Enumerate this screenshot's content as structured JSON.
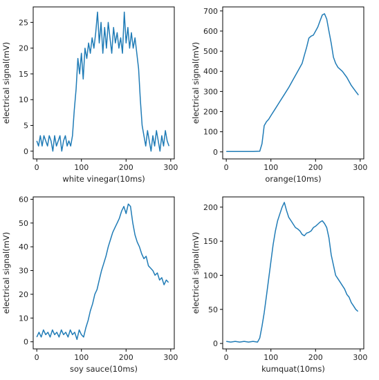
{
  "colors": {
    "line": "#1f7bb6",
    "axis": "#000000",
    "text": "#222222"
  },
  "chart_data": [
    {
      "type": "line",
      "xlabel": "white vinegar(10ms)",
      "ylabel": "electrical signal(mV)",
      "xlim": [
        -8,
        308
      ],
      "ylim": [
        -1.5,
        28
      ],
      "xticks": [
        0,
        100,
        200,
        300
      ],
      "yticks": [
        0,
        5,
        10,
        15,
        20,
        25
      ],
      "grid": false,
      "points": [
        [
          0,
          2
        ],
        [
          4,
          1
        ],
        [
          8,
          3
        ],
        [
          12,
          1
        ],
        [
          16,
          3
        ],
        [
          20,
          2
        ],
        [
          24,
          1
        ],
        [
          28,
          3
        ],
        [
          32,
          2
        ],
        [
          36,
          0
        ],
        [
          40,
          3
        ],
        [
          44,
          1
        ],
        [
          48,
          2
        ],
        [
          52,
          3
        ],
        [
          56,
          0
        ],
        [
          60,
          2
        ],
        [
          64,
          3
        ],
        [
          68,
          1
        ],
        [
          72,
          2
        ],
        [
          76,
          1
        ],
        [
          80,
          3
        ],
        [
          84,
          8
        ],
        [
          88,
          12
        ],
        [
          92,
          18
        ],
        [
          96,
          15
        ],
        [
          100,
          19
        ],
        [
          104,
          14
        ],
        [
          108,
          20
        ],
        [
          112,
          18
        ],
        [
          116,
          21
        ],
        [
          120,
          19
        ],
        [
          124,
          22
        ],
        [
          128,
          20
        ],
        [
          132,
          23
        ],
        [
          136,
          27
        ],
        [
          140,
          21
        ],
        [
          144,
          25
        ],
        [
          148,
          19
        ],
        [
          152,
          24
        ],
        [
          156,
          20
        ],
        [
          160,
          25
        ],
        [
          164,
          22
        ],
        [
          168,
          19
        ],
        [
          172,
          24
        ],
        [
          176,
          21
        ],
        [
          180,
          23
        ],
        [
          184,
          20
        ],
        [
          188,
          22
        ],
        [
          192,
          19
        ],
        [
          196,
          27
        ],
        [
          200,
          21
        ],
        [
          204,
          24
        ],
        [
          208,
          20
        ],
        [
          212,
          23
        ],
        [
          216,
          20
        ],
        [
          220,
          22
        ],
        [
          224,
          19
        ],
        [
          228,
          16
        ],
        [
          232,
          10
        ],
        [
          236,
          5
        ],
        [
          240,
          3
        ],
        [
          244,
          1
        ],
        [
          248,
          4
        ],
        [
          252,
          2
        ],
        [
          256,
          0
        ],
        [
          260,
          3
        ],
        [
          264,
          1
        ],
        [
          268,
          4
        ],
        [
          272,
          2
        ],
        [
          276,
          0
        ],
        [
          280,
          3
        ],
        [
          284,
          1
        ],
        [
          288,
          4
        ],
        [
          292,
          2
        ],
        [
          296,
          1
        ]
      ]
    },
    {
      "type": "line",
      "xlabel": "orange(10ms)",
      "ylabel": "electrical signal(mV)",
      "xlim": [
        -8,
        308
      ],
      "ylim": [
        -35,
        720
      ],
      "xticks": [
        0,
        100,
        200,
        300
      ],
      "yticks": [
        0,
        100,
        200,
        300,
        400,
        500,
        600,
        700
      ],
      "grid": false,
      "points": [
        [
          0,
          2
        ],
        [
          20,
          2
        ],
        [
          40,
          2
        ],
        [
          60,
          2
        ],
        [
          75,
          3
        ],
        [
          80,
          40
        ],
        [
          85,
          130
        ],
        [
          90,
          150
        ],
        [
          95,
          162
        ],
        [
          100,
          180
        ],
        [
          110,
          215
        ],
        [
          120,
          250
        ],
        [
          130,
          285
        ],
        [
          140,
          320
        ],
        [
          150,
          360
        ],
        [
          160,
          400
        ],
        [
          170,
          440
        ],
        [
          175,
          480
        ],
        [
          180,
          520
        ],
        [
          185,
          565
        ],
        [
          190,
          575
        ],
        [
          195,
          580
        ],
        [
          200,
          600
        ],
        [
          205,
          620
        ],
        [
          210,
          650
        ],
        [
          215,
          680
        ],
        [
          220,
          686
        ],
        [
          225,
          660
        ],
        [
          230,
          600
        ],
        [
          235,
          540
        ],
        [
          240,
          470
        ],
        [
          245,
          440
        ],
        [
          250,
          420
        ],
        [
          260,
          400
        ],
        [
          270,
          370
        ],
        [
          280,
          330
        ],
        [
          290,
          300
        ],
        [
          296,
          282
        ]
      ]
    },
    {
      "type": "line",
      "xlabel": "soy sauce(10ms)",
      "ylabel": "electrical signal(mV)",
      "xlim": [
        -8,
        308
      ],
      "ylim": [
        -3,
        61
      ],
      "xticks": [
        0,
        100,
        200,
        300
      ],
      "yticks": [
        0,
        10,
        20,
        30,
        40,
        50,
        60
      ],
      "grid": false,
      "points": [
        [
          0,
          2
        ],
        [
          5,
          4
        ],
        [
          10,
          2
        ],
        [
          15,
          5
        ],
        [
          20,
          3
        ],
        [
          25,
          4
        ],
        [
          30,
          2
        ],
        [
          35,
          5
        ],
        [
          40,
          3
        ],
        [
          45,
          4
        ],
        [
          50,
          2
        ],
        [
          55,
          5
        ],
        [
          60,
          3
        ],
        [
          65,
          4
        ],
        [
          70,
          2
        ],
        [
          75,
          5
        ],
        [
          80,
          3
        ],
        [
          85,
          4
        ],
        [
          90,
          1
        ],
        [
          95,
          5
        ],
        [
          100,
          3
        ],
        [
          105,
          2
        ],
        [
          110,
          6
        ],
        [
          115,
          9
        ],
        [
          120,
          13
        ],
        [
          125,
          16
        ],
        [
          130,
          20
        ],
        [
          135,
          22
        ],
        [
          140,
          26
        ],
        [
          145,
          30
        ],
        [
          150,
          33
        ],
        [
          155,
          36
        ],
        [
          160,
          40
        ],
        [
          165,
          43
        ],
        [
          170,
          46
        ],
        [
          175,
          48
        ],
        [
          180,
          50
        ],
        [
          185,
          52
        ],
        [
          190,
          55
        ],
        [
          195,
          57
        ],
        [
          200,
          54
        ],
        [
          205,
          58
        ],
        [
          210,
          57
        ],
        [
          215,
          50
        ],
        [
          220,
          45
        ],
        [
          225,
          42
        ],
        [
          230,
          40
        ],
        [
          235,
          37
        ],
        [
          240,
          35
        ],
        [
          245,
          36
        ],
        [
          250,
          32
        ],
        [
          255,
          31
        ],
        [
          260,
          30
        ],
        [
          265,
          28
        ],
        [
          270,
          29
        ],
        [
          275,
          26
        ],
        [
          280,
          27
        ],
        [
          285,
          24
        ],
        [
          290,
          26
        ],
        [
          295,
          25
        ]
      ]
    },
    {
      "type": "line",
      "xlabel": "kumquat(10ms)",
      "ylabel": "electrical signal(mV)",
      "xlim": [
        -8,
        308
      ],
      "ylim": [
        -8,
        215
      ],
      "xticks": [
        0,
        100,
        200,
        300
      ],
      "yticks": [
        0,
        50,
        100,
        150,
        200
      ],
      "grid": false,
      "points": [
        [
          0,
          3
        ],
        [
          10,
          2
        ],
        [
          20,
          3
        ],
        [
          30,
          2
        ],
        [
          40,
          3
        ],
        [
          50,
          2
        ],
        [
          60,
          3
        ],
        [
          70,
          2
        ],
        [
          75,
          8
        ],
        [
          80,
          25
        ],
        [
          85,
          45
        ],
        [
          90,
          70
        ],
        [
          95,
          95
        ],
        [
          100,
          120
        ],
        [
          105,
          145
        ],
        [
          110,
          165
        ],
        [
          115,
          180
        ],
        [
          120,
          190
        ],
        [
          125,
          200
        ],
        [
          130,
          207
        ],
        [
          135,
          195
        ],
        [
          140,
          185
        ],
        [
          145,
          180
        ],
        [
          150,
          175
        ],
        [
          155,
          170
        ],
        [
          160,
          168
        ],
        [
          165,
          165
        ],
        [
          170,
          160
        ],
        [
          175,
          158
        ],
        [
          180,
          162
        ],
        [
          185,
          163
        ],
        [
          190,
          165
        ],
        [
          195,
          170
        ],
        [
          200,
          172
        ],
        [
          205,
          175
        ],
        [
          210,
          178
        ],
        [
          215,
          180
        ],
        [
          220,
          176
        ],
        [
          225,
          170
        ],
        [
          230,
          155
        ],
        [
          235,
          130
        ],
        [
          240,
          115
        ],
        [
          245,
          100
        ],
        [
          250,
          95
        ],
        [
          255,
          90
        ],
        [
          260,
          85
        ],
        [
          265,
          80
        ],
        [
          270,
          72
        ],
        [
          275,
          68
        ],
        [
          280,
          60
        ],
        [
          285,
          55
        ],
        [
          290,
          50
        ],
        [
          295,
          47
        ]
      ]
    }
  ]
}
